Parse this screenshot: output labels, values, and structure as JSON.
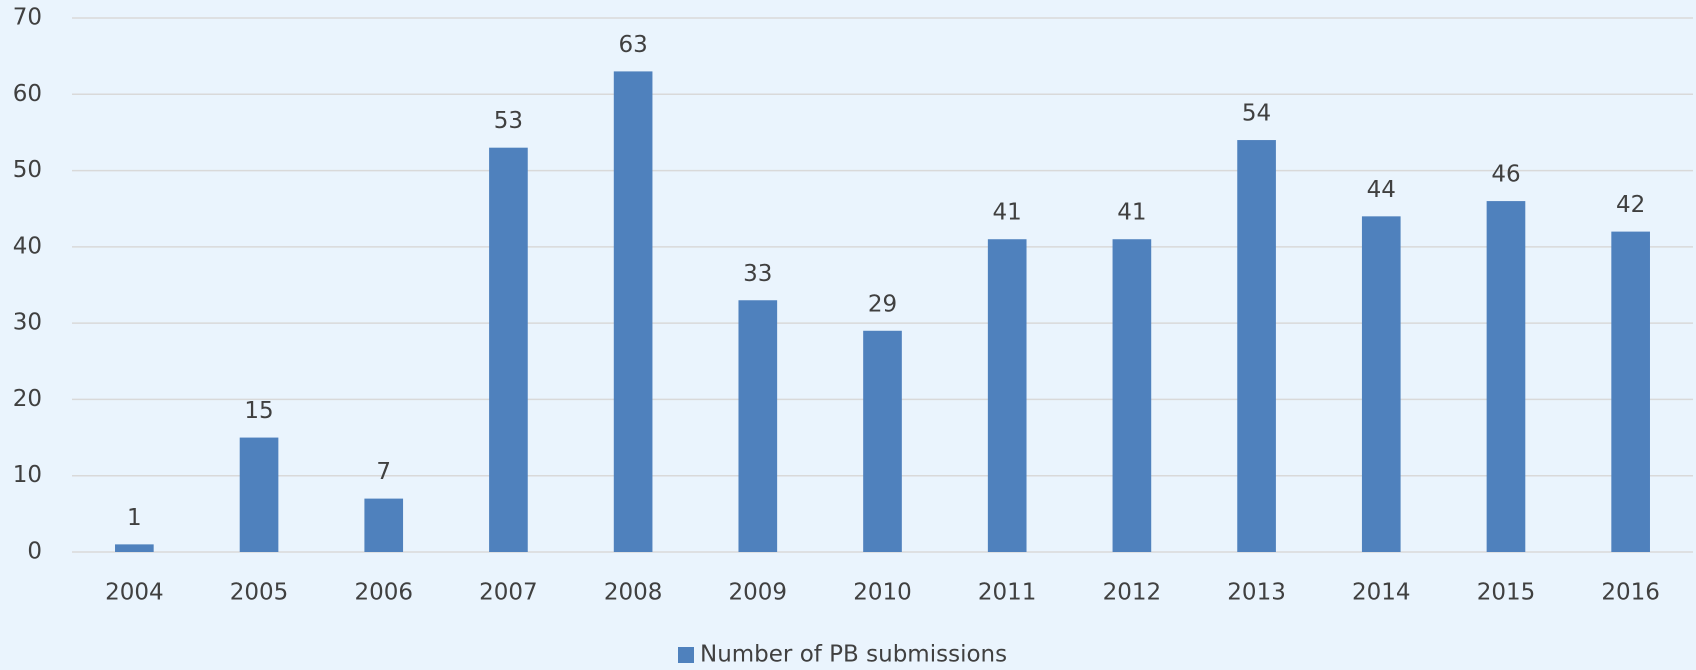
{
  "chart_data": {
    "type": "bar",
    "categories": [
      "2004",
      "2005",
      "2006",
      "2007",
      "2008",
      "2009",
      "2010",
      "2011",
      "2012",
      "2013",
      "2014",
      "2015",
      "2016"
    ],
    "series": [
      {
        "name": "Number of PB submissions",
        "color": "#4f81bd",
        "values": [
          1,
          15,
          7,
          53,
          63,
          33,
          29,
          41,
          41,
          54,
          44,
          46,
          42
        ]
      }
    ],
    "ylim": [
      0,
      70
    ],
    "yticks": [
      0,
      10,
      20,
      30,
      40,
      50,
      60,
      70
    ],
    "grid": true,
    "legend": "bottom"
  }
}
